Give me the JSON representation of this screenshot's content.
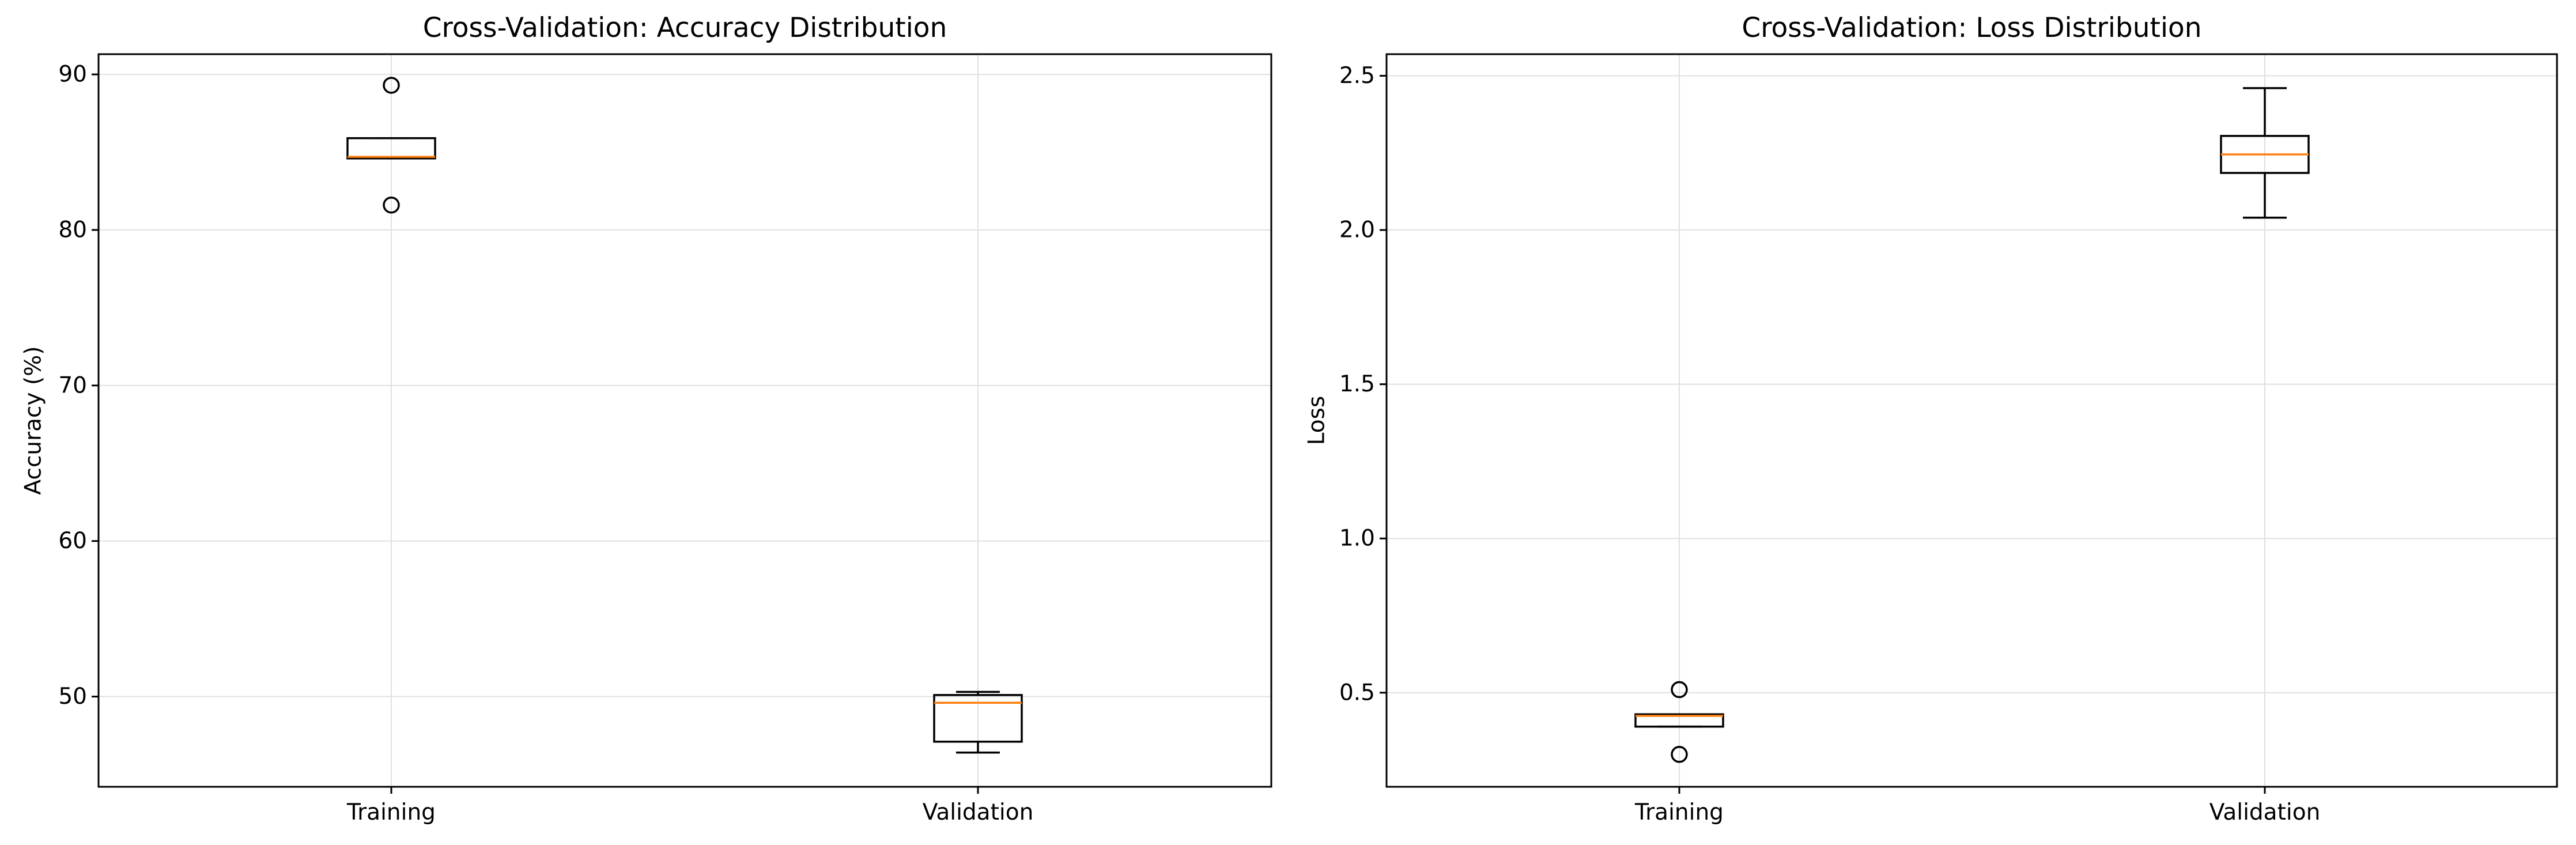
{
  "chart_data": [
    {
      "type": "box",
      "title": "Cross-Validation: Accuracy Distribution",
      "xlabel": "",
      "ylabel": "Accuracy (%)",
      "categories": [
        "Training",
        "Validation"
      ],
      "ylim": [
        44.2,
        91.3
      ],
      "yticks": [
        50,
        60,
        70,
        80,
        90
      ],
      "ytick_labels": [
        "50",
        "60",
        "70",
        "80",
        "90"
      ],
      "grid": true,
      "boxes": [
        {
          "label": "Training",
          "whisker_low": 84.6,
          "q1": 84.6,
          "median": 84.7,
          "q3": 85.9,
          "whisker_high": 85.9,
          "fliers": [
            89.3,
            81.6
          ]
        },
        {
          "label": "Validation",
          "whisker_low": 46.4,
          "q1": 47.1,
          "median": 49.6,
          "q3": 50.1,
          "whisker_high": 50.3,
          "fliers": []
        }
      ],
      "colors": {
        "box": "#000000",
        "median": "#ff7f0e",
        "grid": "#e0e0e0"
      }
    },
    {
      "type": "box",
      "title": "Cross-Validation: Loss Distribution",
      "xlabel": "",
      "ylabel": "Loss",
      "categories": [
        "Training",
        "Validation"
      ],
      "ylim": [
        0.195,
        2.57
      ],
      "yticks": [
        0.5,
        1.0,
        1.5,
        2.0,
        2.5
      ],
      "ytick_labels": [
        "0.5",
        "1.0",
        "1.5",
        "2.0",
        "2.5"
      ],
      "grid": true,
      "boxes": [
        {
          "label": "Training",
          "whisker_low": 0.39,
          "q1": 0.39,
          "median": 0.425,
          "q3": 0.43,
          "whisker_high": 0.43,
          "fliers": [
            0.51,
            0.3
          ]
        },
        {
          "label": "Validation",
          "whisker_low": 2.04,
          "q1": 2.185,
          "median": 2.245,
          "q3": 2.305,
          "whisker_high": 2.46,
          "fliers": []
        }
      ],
      "colors": {
        "box": "#000000",
        "median": "#ff7f0e",
        "grid": "#e0e0e0"
      }
    }
  ]
}
